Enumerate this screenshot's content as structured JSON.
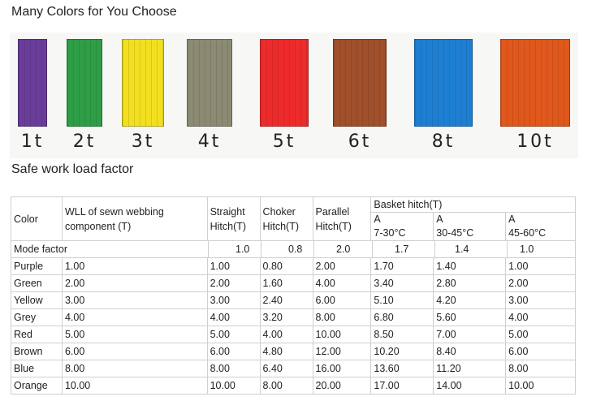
{
  "heading1": "Many Colors for You Choose",
  "heading2": "Safe work load factor",
  "swatches": [
    {
      "label": "1t",
      "color": "#6a3d9a"
    },
    {
      "label": "2t",
      "color": "#2e9e46"
    },
    {
      "label": "3t",
      "color": "#f2df1f"
    },
    {
      "label": "4t",
      "color": "#8b8b73"
    },
    {
      "label": "5t",
      "color": "#ee2b2b"
    },
    {
      "label": "6t",
      "color": "#a0502a"
    },
    {
      "label": "8t",
      "color": "#1e7fd2"
    },
    {
      "label": "10t",
      "color": "#e0581c"
    }
  ],
  "table": {
    "headers": {
      "color": "Color",
      "wll": "WLL of sewn webbing component (T)",
      "straight": "Straight Hitch(T)",
      "choker": "Choker Hitch(T)",
      "parallel": "Parallel Hitch(T)",
      "basket": "Basket hitch(T)",
      "a1": "A",
      "a1_range": "7-30°C",
      "a2": "A",
      "a2_range": "30-45°C",
      "a3": "A",
      "a3_range": "45-60°C"
    },
    "mode_factor": {
      "label": "Mode factor",
      "values": [
        "1.0",
        "0.8",
        "2.0",
        "1.7",
        "1.4",
        "1.0"
      ]
    },
    "rows": [
      [
        "Purple",
        "1.00",
        "1.00",
        "0.80",
        "2.00",
        "1.70",
        "1.40",
        "1.00"
      ],
      [
        "Green",
        "2.00",
        "2.00",
        "1.60",
        "4.00",
        "3.40",
        "2.80",
        "2.00"
      ],
      [
        "Yellow",
        "3.00",
        "3.00",
        "2.40",
        "6.00",
        "5.10",
        "4.20",
        "3.00"
      ],
      [
        "Grey",
        "4.00",
        "4.00",
        "3.20",
        "8.00",
        "6.80",
        "5.60",
        "4.00"
      ],
      [
        "Red",
        "5.00",
        "5.00",
        "4.00",
        "10.00",
        "8.50",
        "7.00",
        "5.00"
      ],
      [
        "Brown",
        "6.00",
        "6.00",
        "4.80",
        "12.00",
        "10.20",
        "8.40",
        "6.00"
      ],
      [
        "Blue",
        "8.00",
        "8.00",
        "6.40",
        "16.00",
        "13.60",
        "11.20",
        "8.00"
      ],
      [
        "Orange",
        "10.00",
        "10.00",
        "8.00",
        "20.00",
        "17.00",
        "14.00",
        "10.00"
      ]
    ]
  }
}
